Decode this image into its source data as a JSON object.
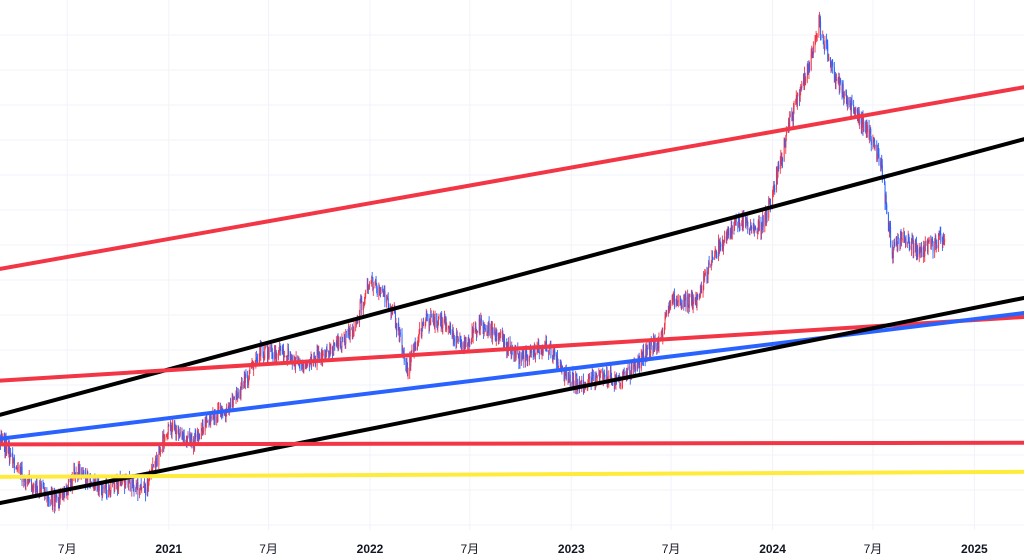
{
  "chart_data": {
    "type": "candlestick",
    "x_tick_labels": [
      {
        "date": "2020-07-01",
        "label": "7月",
        "bold": false
      },
      {
        "date": "2021-01-01",
        "label": "2021",
        "bold": true
      },
      {
        "date": "2021-07-01",
        "label": "7月",
        "bold": false
      },
      {
        "date": "2022-01-01",
        "label": "2022",
        "bold": true
      },
      {
        "date": "2022-07-01",
        "label": "7月",
        "bold": false
      },
      {
        "date": "2023-01-01",
        "label": "2023",
        "bold": true
      },
      {
        "date": "2023-07-01",
        "label": "7月",
        "bold": false
      },
      {
        "date": "2024-01-01",
        "label": "2024",
        "bold": true
      },
      {
        "date": "2024-07-01",
        "label": "7月",
        "bold": false
      },
      {
        "date": "2025-01-01",
        "label": "2025",
        "bold": true
      }
    ],
    "x_range": [
      "2020-03-01",
      "2025-04-01"
    ],
    "price_path": [
      [
        "2020-03-01",
        0.78
      ],
      [
        "2020-04-10",
        0.85
      ],
      [
        "2020-05-20",
        0.88
      ],
      [
        "2020-06-15",
        0.9
      ],
      [
        "2020-07-20",
        0.84
      ],
      [
        "2020-09-01",
        0.88
      ],
      [
        "2020-10-15",
        0.86
      ],
      [
        "2020-11-20",
        0.88
      ],
      [
        "2021-01-01",
        0.76
      ],
      [
        "2021-02-10",
        0.79
      ],
      [
        "2021-03-20",
        0.75
      ],
      [
        "2021-05-01",
        0.72
      ],
      [
        "2021-06-15",
        0.63
      ],
      [
        "2021-07-20",
        0.63
      ],
      [
        "2021-09-01",
        0.65
      ],
      [
        "2021-10-20",
        0.63
      ],
      [
        "2021-12-01",
        0.59
      ],
      [
        "2022-01-01",
        0.5
      ],
      [
        "2022-02-10",
        0.55
      ],
      [
        "2022-03-10",
        0.66
      ],
      [
        "2022-04-10",
        0.57
      ],
      [
        "2022-05-20",
        0.58
      ],
      [
        "2022-06-20",
        0.62
      ],
      [
        "2022-07-20",
        0.58
      ],
      [
        "2022-08-20",
        0.6
      ],
      [
        "2022-10-01",
        0.64
      ],
      [
        "2022-11-20",
        0.62
      ],
      [
        "2022-12-20",
        0.67
      ],
      [
        "2023-01-20",
        0.69
      ],
      [
        "2023-02-20",
        0.67
      ],
      [
        "2023-04-01",
        0.68
      ],
      [
        "2023-05-10",
        0.64
      ],
      [
        "2023-06-10",
        0.61
      ],
      [
        "2023-07-01",
        0.54
      ],
      [
        "2023-08-15",
        0.54
      ],
      [
        "2023-09-20",
        0.45
      ],
      [
        "2023-11-01",
        0.39
      ],
      [
        "2023-12-10",
        0.41
      ],
      [
        "2024-01-01",
        0.35
      ],
      [
        "2024-02-01",
        0.22
      ],
      [
        "2024-03-10",
        0.11
      ],
      [
        "2024-03-25",
        0.04
      ],
      [
        "2024-04-20",
        0.13
      ],
      [
        "2024-05-20",
        0.19
      ],
      [
        "2024-06-20",
        0.23
      ],
      [
        "2024-07-15",
        0.29
      ],
      [
        "2024-08-05",
        0.45
      ],
      [
        "2024-08-25",
        0.42
      ],
      [
        "2024-09-20",
        0.45
      ],
      [
        "2024-10-15",
        0.44
      ],
      [
        "2024-11-10",
        0.42
      ]
    ],
    "trend_lines": [
      {
        "color": "#f23645",
        "width": 4,
        "from": [
          "2020-03-01",
          0.481
        ],
        "to": [
          "2025-04-01",
          0.156
        ]
      },
      {
        "color": "#000000",
        "width": 4,
        "from": [
          "2020-03-01",
          0.742
        ],
        "to": [
          "2025-04-01",
          0.249
        ]
      },
      {
        "color": "#f23645",
        "width": 4,
        "from": [
          "2020-03-01",
          0.681
        ],
        "to": [
          "2025-04-01",
          0.567
        ]
      },
      {
        "color": "#2962ff",
        "width": 4,
        "from": [
          "2020-03-01",
          0.785
        ],
        "to": [
          "2025-04-01",
          0.56
        ]
      },
      {
        "color": "#000000",
        "width": 4,
        "from": [
          "2020-03-01",
          0.9
        ],
        "to": [
          "2025-04-01",
          0.533
        ]
      },
      {
        "color": "#f23645",
        "width": 4,
        "from": [
          "2020-03-01",
          0.795
        ],
        "to": [
          "2025-04-01",
          0.792
        ]
      },
      {
        "color": "#ffeb3b",
        "width": 4,
        "from": [
          "2020-03-01",
          0.853
        ],
        "to": [
          "2025-04-01",
          0.844
        ]
      }
    ],
    "candle_up_color": "#f23645",
    "candle_down_color": "#2962ff",
    "grid": true,
    "legend": "none"
  }
}
